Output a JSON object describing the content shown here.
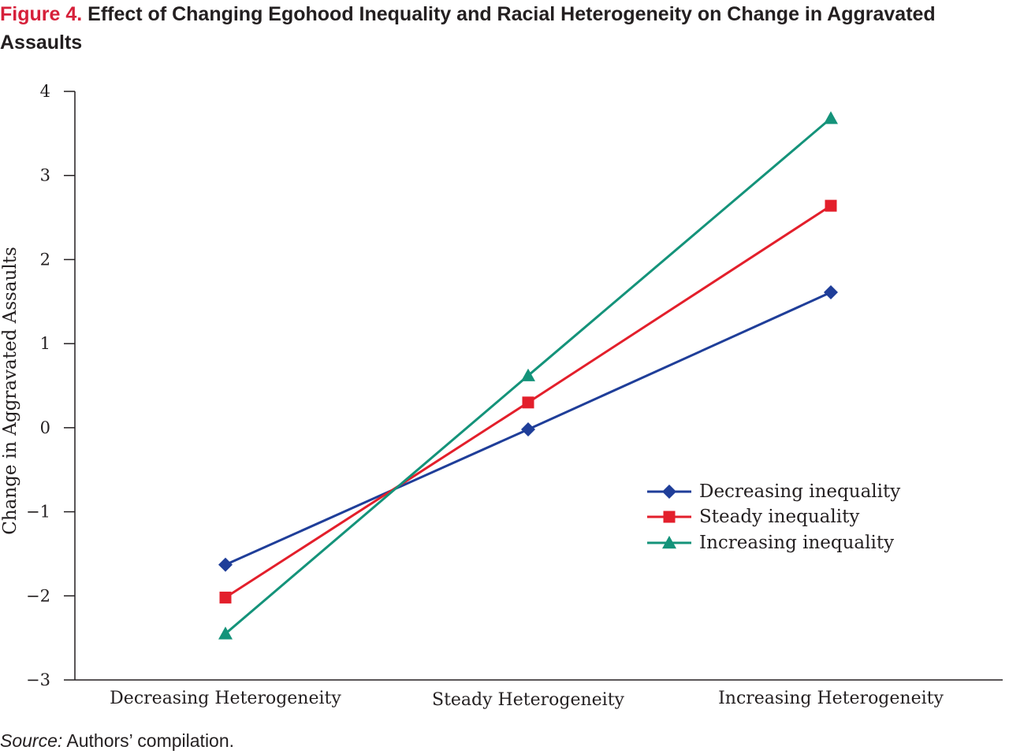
{
  "figure": {
    "label": "Figure 4.",
    "title": "Effect of Changing Egohood Inequality and Racial Heterogeneity on Change in Aggravated Assaults"
  },
  "source": {
    "label": "Source:",
    "text": "Authors’ compilation."
  },
  "chart_data": {
    "type": "line",
    "title": "",
    "xlabel": "",
    "ylabel": "Change in Aggravated Assaults",
    "categories": [
      "Decreasing Heterogeneity",
      "Steady Heterogeneity",
      "Increasing Heterogeneity"
    ],
    "ylim": [
      -3,
      4
    ],
    "yticks": [
      -3,
      -2,
      -1,
      0,
      1,
      2,
      3,
      4
    ],
    "ytick_labels": [
      "−3",
      "−2",
      "−1",
      "0",
      "1",
      "2",
      "3",
      "4"
    ],
    "grid": false,
    "legend_position": "center-right",
    "series": [
      {
        "name": "Decreasing inequality",
        "values": [
          -1.63,
          -0.02,
          1.61
        ],
        "color": "#1f3e99",
        "marker": "diamond"
      },
      {
        "name": "Steady inequality",
        "values": [
          -2.02,
          0.3,
          2.64
        ],
        "color": "#e31f2b",
        "marker": "square"
      },
      {
        "name": "Increasing inequality",
        "values": [
          -2.45,
          0.62,
          3.68
        ],
        "color": "#14937a",
        "marker": "triangle"
      }
    ]
  }
}
